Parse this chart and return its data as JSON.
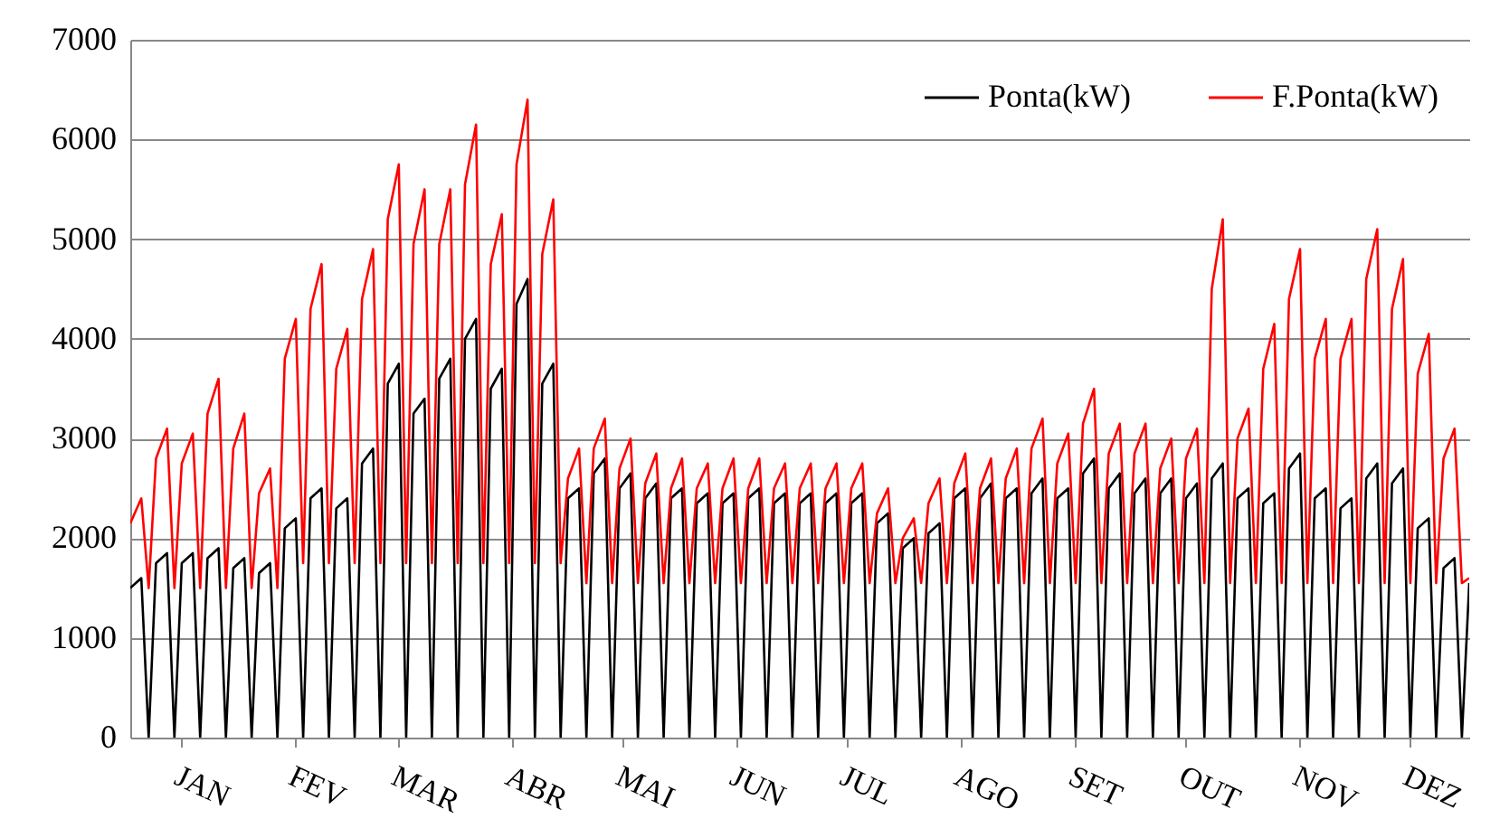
{
  "chart_data": {
    "type": "line",
    "x": [
      "--01-01",
      "--01-04",
      "--01-06",
      "--01-08",
      "--01-11",
      "--01-13",
      "--01-15",
      "--01-18",
      "--01-20",
      "--01-22",
      "--01-25",
      "--01-27",
      "--01-29",
      "--02-01",
      "--02-03",
      "--02-05",
      "--02-08",
      "--02-10",
      "--02-12",
      "--02-15",
      "--02-17",
      "--02-19",
      "--02-22",
      "--02-24",
      "--02-26",
      "--03-01",
      "--03-03",
      "--03-05",
      "--03-08",
      "--03-10",
      "--03-12",
      "--03-15",
      "--03-17",
      "--03-19",
      "--03-22",
      "--03-24",
      "--03-26",
      "--03-29",
      "--03-31",
      "--04-02",
      "--04-05",
      "--04-07",
      "--04-09",
      "--04-12",
      "--04-14",
      "--04-16",
      "--04-19",
      "--04-21",
      "--04-23",
      "--04-26",
      "--04-28",
      "--04-30",
      "--05-03",
      "--05-05",
      "--05-07",
      "--05-10",
      "--05-12",
      "--05-14",
      "--05-17",
      "--05-19",
      "--05-21",
      "--05-24",
      "--05-26",
      "--05-28",
      "--05-31",
      "--06-02",
      "--06-04",
      "--06-07",
      "--06-09",
      "--06-11",
      "--06-14",
      "--06-16",
      "--06-18",
      "--06-21",
      "--06-23",
      "--06-25",
      "--06-28",
      "--06-30",
      "--07-02",
      "--07-05",
      "--07-07",
      "--07-09",
      "--07-12",
      "--07-14",
      "--07-16",
      "--07-19",
      "--07-21",
      "--07-23",
      "--07-26",
      "--07-28",
      "--07-30",
      "--08-02",
      "--08-04",
      "--08-06",
      "--08-09",
      "--08-11",
      "--08-13",
      "--08-16",
      "--08-18",
      "--08-20",
      "--08-23",
      "--08-25",
      "--08-27",
      "--08-30",
      "--09-01",
      "--09-03",
      "--09-06",
      "--09-08",
      "--09-10",
      "--09-13",
      "--09-15",
      "--09-17",
      "--09-20",
      "--09-22",
      "--09-24",
      "--09-27",
      "--09-29",
      "--10-01",
      "--10-04",
      "--10-06",
      "--10-08",
      "--10-11",
      "--10-13",
      "--10-15",
      "--10-18",
      "--10-20",
      "--10-22",
      "--10-25",
      "--10-27",
      "--10-29",
      "--11-01",
      "--11-03",
      "--11-05",
      "--11-08",
      "--11-10",
      "--11-12",
      "--11-15",
      "--11-17",
      "--11-19",
      "--11-22",
      "--11-24",
      "--11-26",
      "--11-29",
      "--12-01",
      "--12-03",
      "--12-06",
      "--12-08",
      "--12-10",
      "--12-13",
      "--12-15",
      "--12-17",
      "--12-20",
      "--12-22",
      "--12-24",
      "--12-27",
      "--12-29",
      "--12-31"
    ],
    "series": [
      {
        "name": "Ponta(kW)",
        "color": "#000000",
        "values": [
          1500,
          1600,
          0,
          1750,
          1850,
          0,
          1750,
          1850,
          0,
          1800,
          1900,
          0,
          1700,
          1800,
          0,
          1650,
          1750,
          0,
          2100,
          2200,
          0,
          2400,
          2500,
          0,
          2300,
          2400,
          0,
          2750,
          2900,
          0,
          3550,
          3750,
          0,
          3250,
          3400,
          0,
          3600,
          3800,
          0,
          4000,
          4200,
          0,
          3500,
          3700,
          0,
          4350,
          4600,
          0,
          3550,
          3750,
          0,
          2400,
          2500,
          0,
          2650,
          2800,
          0,
          2500,
          2650,
          0,
          2400,
          2550,
          0,
          2400,
          2500,
          0,
          2350,
          2450,
          0,
          2350,
          2450,
          0,
          2400,
          2500,
          0,
          2350,
          2450,
          0,
          2350,
          2450,
          0,
          2350,
          2450,
          0,
          2350,
          2450,
          0,
          2150,
          2250,
          0,
          1900,
          2000,
          0,
          2050,
          2150,
          0,
          2400,
          2500,
          0,
          2400,
          2550,
          0,
          2400,
          2500,
          0,
          2450,
          2600,
          0,
          2400,
          2500,
          0,
          2650,
          2800,
          0,
          2500,
          2650,
          0,
          2450,
          2600,
          0,
          2450,
          2600,
          0,
          2400,
          2550,
          0,
          2600,
          2750,
          0,
          2400,
          2500,
          0,
          2350,
          2450,
          0,
          2700,
          2850,
          0,
          2400,
          2500,
          0,
          2300,
          2400,
          0,
          2600,
          2750,
          0,
          2550,
          2700,
          0,
          2100,
          2200,
          0,
          1700,
          1800,
          0,
          1550
        ]
      },
      {
        "name": "F.Ponta(kW)",
        "color": "#ff0000",
        "values": [
          2150,
          2400,
          1500,
          2800,
          3100,
          1500,
          2750,
          3050,
          1500,
          3250,
          3600,
          1500,
          2900,
          3250,
          1500,
          2450,
          2700,
          1500,
          3800,
          4200,
          1750,
          4300,
          4750,
          1750,
          3700,
          4100,
          1750,
          4400,
          4900,
          1750,
          5200,
          5750,
          1750,
          4950,
          5500,
          1750,
          4950,
          5500,
          1750,
          5550,
          6150,
          1750,
          4750,
          5250,
          1750,
          5750,
          6400,
          1750,
          4850,
          5400,
          1750,
          2600,
          2900,
          1550,
          2900,
          3200,
          1550,
          2700,
          3000,
          1550,
          2550,
          2850,
          1550,
          2500,
          2800,
          1550,
          2500,
          2750,
          1550,
          2500,
          2800,
          1550,
          2500,
          2800,
          1550,
          2500,
          2750,
          1550,
          2500,
          2750,
          1550,
          2500,
          2750,
          1550,
          2500,
          2750,
          1550,
          2250,
          2500,
          1550,
          2000,
          2200,
          1550,
          2350,
          2600,
          1550,
          2550,
          2850,
          1550,
          2500,
          2800,
          1550,
          2600,
          2900,
          1550,
          2900,
          3200,
          1550,
          2750,
          3050,
          1550,
          3150,
          3500,
          1550,
          2850,
          3150,
          1550,
          2850,
          3150,
          1550,
          2700,
          3000,
          1550,
          2800,
          3100,
          1550,
          4500,
          5200,
          1550,
          3000,
          3300,
          1550,
          3700,
          4150,
          1550,
          4400,
          4900,
          1550,
          3800,
          4200,
          1550,
          3800,
          4200,
          1550,
          4600,
          5100,
          1550,
          4300,
          4800,
          1550,
          3650,
          4050,
          1550,
          2800,
          3100,
          1550,
          1600
        ]
      }
    ],
    "xlim": [
      "--01-01",
      "--12-31"
    ],
    "xticks": [
      {
        "value": "--01-15",
        "label": "JAN"
      },
      {
        "value": "--02-15",
        "label": "FEV"
      },
      {
        "value": "--03-15",
        "label": "MAR"
      },
      {
        "value": "--04-15",
        "label": "ABR"
      },
      {
        "value": "--05-15",
        "label": "MAI"
      },
      {
        "value": "--06-15",
        "label": "JUN"
      },
      {
        "value": "--07-15",
        "label": "JUL"
      },
      {
        "value": "--08-15",
        "label": "AGO"
      },
      {
        "value": "--09-15",
        "label": "SET"
      },
      {
        "value": "--10-15",
        "label": "OUT"
      },
      {
        "value": "--11-15",
        "label": "NOV"
      },
      {
        "value": "--12-15",
        "label": "DEZ"
      }
    ],
    "ylim": [
      0,
      7000
    ],
    "yticks": [
      0,
      1000,
      2000,
      3000,
      4000,
      5000,
      6000,
      7000
    ],
    "grid": "y",
    "legend": "top right"
  }
}
